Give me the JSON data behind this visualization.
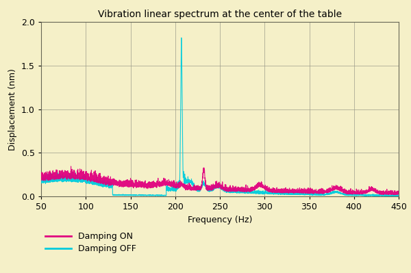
{
  "title": "Vibration linear spectrum at the center of the table",
  "xlabel": "Frequency (Hz)",
  "ylabel": "Displacement (nm)",
  "xlim": [
    50,
    450
  ],
  "ylim": [
    0,
    2
  ],
  "xticks": [
    50,
    100,
    150,
    200,
    250,
    300,
    350,
    400,
    450
  ],
  "yticks": [
    0,
    0.5,
    1.0,
    1.5,
    2.0
  ],
  "background_color": "#f5f0c8",
  "grid_color": "#999988",
  "damping_on_color": "#e0007f",
  "damping_off_color": "#00ccdd",
  "legend_labels": [
    "Damping ON",
    "Damping OFF"
  ],
  "title_fontsize": 10,
  "label_fontsize": 9,
  "tick_fontsize": 9
}
